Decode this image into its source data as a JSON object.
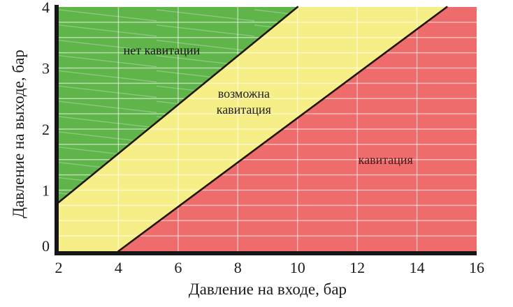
{
  "chart_data": {
    "type": "area",
    "title": "",
    "xlabel": "Давление на входе, бар",
    "ylabel": "Давление на выходе, бар",
    "xlim": [
      2,
      16
    ],
    "ylim": [
      0,
      4
    ],
    "x_ticks": [
      2,
      4,
      6,
      8,
      10,
      12,
      14,
      16
    ],
    "y_ticks": [
      0,
      1,
      2,
      3,
      4
    ],
    "grid": {
      "x_step": 2,
      "y_step": 0.25,
      "color": "rgba(255,255,255,0.55)",
      "width": 1.4
    },
    "axis_color": "#151515",
    "regions": [
      {
        "id": "no-cavitation",
        "label_lines": [
          "нет кавитации"
        ],
        "color": "#5fb44a",
        "hatch": true,
        "label_pos": [
          5.45,
          3.29
        ],
        "label_color": "#141414",
        "points": [
          [
            2,
            0.8
          ],
          [
            10,
            4
          ],
          [
            2,
            4
          ]
        ]
      },
      {
        "id": "possible-cavitation",
        "label_lines": [
          "возможна",
          "кавитация"
        ],
        "color": "#f6ef88",
        "hatch": false,
        "label_pos": [
          8.2,
          2.45
        ],
        "label_color": "#202020",
        "points": [
          [
            2,
            0
          ],
          [
            4,
            0
          ],
          [
            15,
            4
          ],
          [
            10,
            4
          ],
          [
            2,
            0.8
          ]
        ]
      },
      {
        "id": "cavitation",
        "label_lines": [
          "кавитация"
        ],
        "color": "#ee6c6c",
        "hatch": false,
        "label_pos": [
          12.95,
          1.5
        ],
        "label_color": "#44181a",
        "points": [
          [
            4,
            0
          ],
          [
            16,
            0
          ],
          [
            16,
            4
          ],
          [
            15,
            4
          ]
        ]
      }
    ],
    "boundary_lines": [
      {
        "id": "upper-boundary",
        "points": [
          [
            2,
            0.8
          ],
          [
            10,
            4
          ]
        ],
        "color": "#221409",
        "width": 2.6
      },
      {
        "id": "lower-boundary",
        "points": [
          [
            4,
            0
          ],
          [
            15,
            4
          ]
        ],
        "color": "#221409",
        "width": 2.6
      }
    ]
  }
}
